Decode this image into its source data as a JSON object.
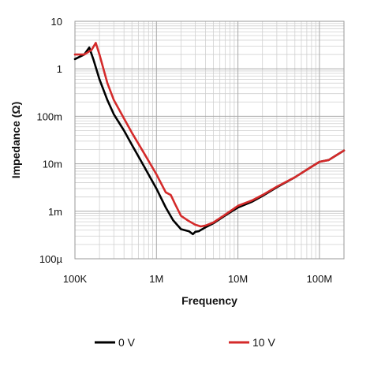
{
  "chart_data": {
    "type": "line",
    "xlabel": "Frequency",
    "ylabel": "Impedance (Ω)",
    "x_scale": "log",
    "y_scale": "log",
    "xlim": [
      100000,
      200000000
    ],
    "ylim": [
      0.0001,
      10
    ],
    "x_ticks": [
      {
        "value": 100000,
        "label": "100K"
      },
      {
        "value": 1000000,
        "label": "1M"
      },
      {
        "value": 10000000,
        "label": "10M"
      },
      {
        "value": 100000000,
        "label": "100M"
      }
    ],
    "y_ticks": [
      {
        "value": 10,
        "label": "10"
      },
      {
        "value": 1,
        "label": "1"
      },
      {
        "value": 0.1,
        "label": "100m"
      },
      {
        "value": 0.01,
        "label": "10m"
      },
      {
        "value": 0.001,
        "label": "1m"
      },
      {
        "value": 0.0001,
        "label": "100µ"
      }
    ],
    "grid": true,
    "legend_position": "bottom",
    "series": [
      {
        "name": "0 V",
        "color": "#000000",
        "x": [
          100000,
          130000,
          150000,
          170000,
          200000,
          250000,
          300000,
          400000,
          500000,
          700000,
          1000000,
          1300000,
          1600000,
          2000000,
          2500000,
          2800000,
          3000000,
          3300000,
          4000000,
          5000000,
          7000000,
          10000000,
          15000000,
          20000000,
          30000000,
          50000000,
          70000000,
          100000000,
          130000000,
          160000000,
          200000000
        ],
        "y": [
          1.6,
          2.0,
          2.8,
          1.5,
          0.6,
          0.22,
          0.11,
          0.05,
          0.025,
          0.009,
          0.003,
          0.0012,
          0.00065,
          0.00042,
          0.00038,
          0.00033,
          0.00037,
          0.00038,
          0.00046,
          0.00056,
          0.00082,
          0.0012,
          0.0016,
          0.0021,
          0.0032,
          0.0052,
          0.0075,
          0.011,
          0.012,
          0.015,
          0.019
        ]
      },
      {
        "name": "10 V",
        "color": "#d42a2a",
        "x": [
          100000,
          130000,
          160000,
          180000,
          200000,
          250000,
          300000,
          400000,
          500000,
          700000,
          1000000,
          1300000,
          1500000,
          1700000,
          2000000,
          2500000,
          3000000,
          3500000,
          4000000,
          5000000,
          7000000,
          10000000,
          15000000,
          20000000,
          30000000,
          50000000,
          70000000,
          100000000,
          130000000,
          160000000,
          200000000
        ],
        "y": [
          2.0,
          2.0,
          2.5,
          3.5,
          2.0,
          0.5,
          0.22,
          0.09,
          0.045,
          0.017,
          0.006,
          0.0025,
          0.0022,
          0.0014,
          0.0008,
          0.00062,
          0.00052,
          0.00048,
          0.0005,
          0.00058,
          0.00085,
          0.0013,
          0.0017,
          0.0022,
          0.0033,
          0.0052,
          0.0075,
          0.011,
          0.012,
          0.015,
          0.019
        ]
      }
    ]
  }
}
